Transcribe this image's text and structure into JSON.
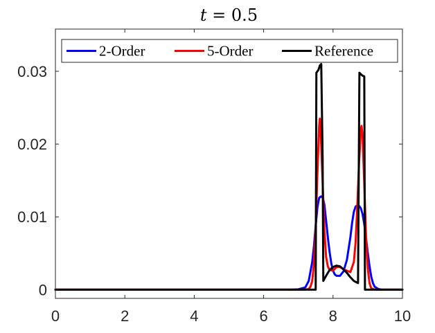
{
  "chart_data": {
    "type": "line",
    "title": "t = 0.5",
    "title_var": "t",
    "title_rest": " = 0.5",
    "xlabel": "",
    "ylabel": "",
    "xlim": [
      0,
      10
    ],
    "ylim": [
      -0.0012,
      0.0358
    ],
    "grid": false,
    "legend_placement": "top",
    "x_ticks": [
      0,
      2,
      4,
      6,
      8,
      10
    ],
    "x_tick_labels": [
      "0",
      "2",
      "4",
      "6",
      "8",
      "10"
    ],
    "y_ticks": [
      0,
      0.01,
      0.02,
      0.03
    ],
    "y_tick_labels": [
      "0",
      "0.01",
      "0.02",
      "0.03"
    ],
    "series": [
      {
        "name": "2-Order",
        "color": "#0000ff",
        "x": [
          0,
          6.8,
          7.0,
          7.2,
          7.3,
          7.4,
          7.45,
          7.5,
          7.55,
          7.6,
          7.65,
          7.7,
          7.75,
          7.8,
          7.85,
          7.9,
          7.95,
          8.0,
          8.05,
          8.1,
          8.2,
          8.3,
          8.4,
          8.5,
          8.55,
          8.6,
          8.65,
          8.7,
          8.75,
          8.8,
          8.85,
          8.9,
          8.95,
          9.0,
          9.05,
          9.1,
          9.15,
          9.2,
          9.3,
          9.4,
          10
        ],
        "y": [
          0,
          0,
          5e-05,
          0.0003,
          0.0012,
          0.0038,
          0.006,
          0.0088,
          0.0113,
          0.0126,
          0.0128,
          0.0127,
          0.0117,
          0.0095,
          0.0072,
          0.0052,
          0.0036,
          0.0026,
          0.0021,
          0.0019,
          0.0019,
          0.0025,
          0.0041,
          0.0072,
          0.0092,
          0.0107,
          0.0114,
          0.0116,
          0.0115,
          0.0112,
          0.0104,
          0.009,
          0.0071,
          0.0051,
          0.0033,
          0.0018,
          0.0009,
          0.0004,
          0.0001,
          0,
          0
        ]
      },
      {
        "name": "5-Order",
        "color": "#ff0000",
        "x": [
          0,
          7.2,
          7.3,
          7.35,
          7.4,
          7.45,
          7.5,
          7.55,
          7.6,
          7.62,
          7.65,
          7.7,
          7.75,
          7.8,
          7.85,
          7.9,
          8.0,
          8.1,
          8.2,
          8.3,
          8.5,
          8.6,
          8.65,
          8.7,
          8.75,
          8.8,
          8.82,
          8.85,
          8.9,
          8.95,
          9.0,
          9.05,
          9.1,
          9.2,
          10
        ],
        "y": [
          0,
          0,
          0.0001,
          0.0004,
          0.0012,
          0.0035,
          0.0085,
          0.016,
          0.0225,
          0.0235,
          0.021,
          0.0148,
          0.0083,
          0.0045,
          0.0032,
          0.0027,
          0.0026,
          0.0031,
          0.0031,
          0.0028,
          0.0024,
          0.0038,
          0.0065,
          0.0115,
          0.0175,
          0.0218,
          0.0225,
          0.0212,
          0.0145,
          0.0075,
          0.003,
          0.0009,
          0.0002,
          0,
          0
        ]
      },
      {
        "name": "Reference",
        "color": "#000000",
        "x": [
          0,
          7.5,
          7.52,
          7.58,
          7.62,
          7.66,
          7.7,
          7.72,
          7.8,
          7.9,
          8.0,
          8.1,
          8.2,
          8.3,
          8.4,
          8.5,
          8.6,
          8.72,
          8.76,
          8.8,
          8.85,
          8.9,
          8.92,
          10
        ],
        "y": [
          0,
          0,
          0.0298,
          0.0302,
          0.0308,
          0.031,
          0.018,
          0.0012,
          0.0019,
          0.0027,
          0.0031,
          0.0033,
          0.0032,
          0.0028,
          0.0023,
          0.0017,
          0.0012,
          0.0009,
          0.0298,
          0.0296,
          0.0294,
          0.0293,
          0,
          0
        ]
      }
    ]
  }
}
